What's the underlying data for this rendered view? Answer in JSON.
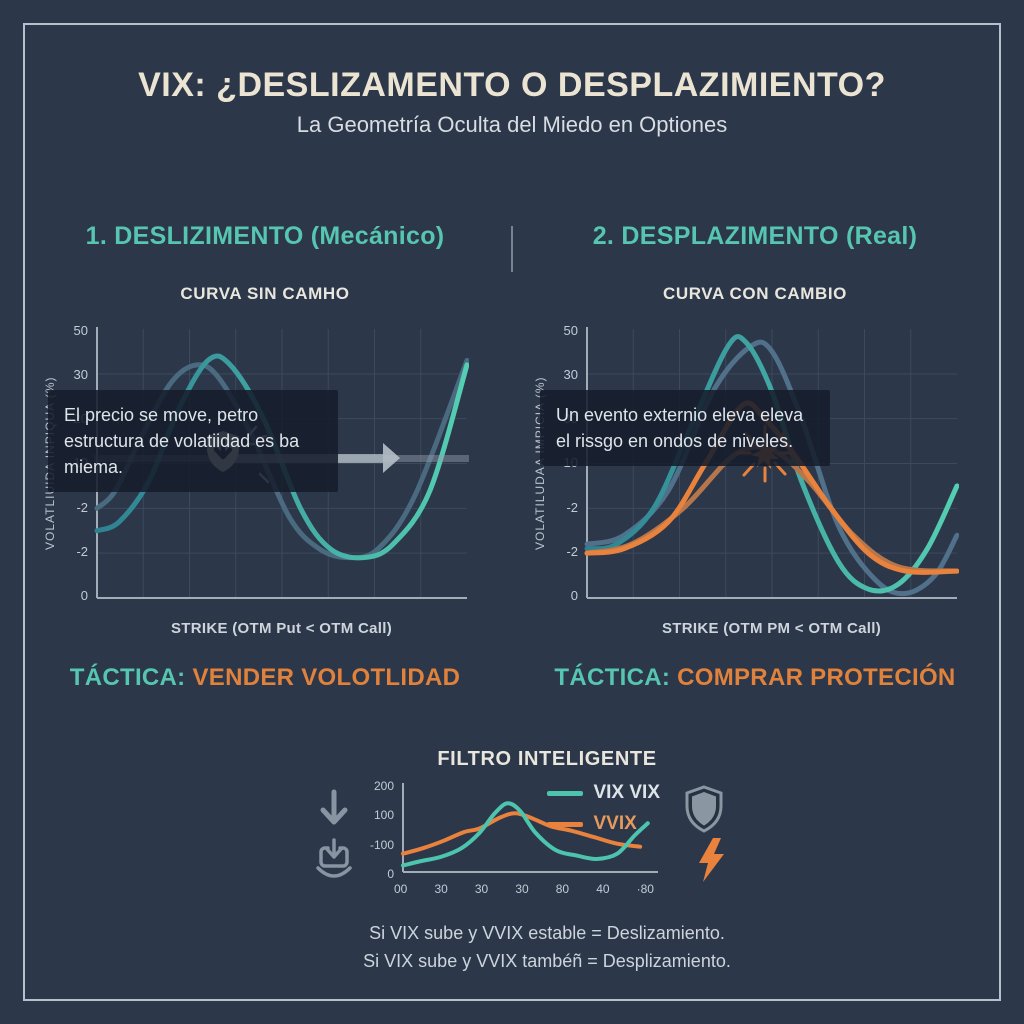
{
  "header": {
    "title": "VIX: ¿DESLIZAMENTO O DESPLAZIMIENTO?",
    "subtitle": "La Geometría Oculta del Miedo en Optiones"
  },
  "panels": {
    "left": {
      "heading": "1. DESLIZIMENTO (Mecánico)",
      "chart_title": "CURVA SIN CAMHO",
      "y_axis_label": "VOLATLIUIDA INPIQUA (%)",
      "x_axis_label": "STRIKE (OTM Put  < OTM Call)",
      "annotation": "El precio se move, petro estructura de volatiidad es ba miema.",
      "tactic_label": "TÁCTICA:",
      "tactic_value": "VENDER VOLOTLIDAD"
    },
    "right": {
      "heading": "2. DESPLAZIMENTO (Real)",
      "chart_title": "CURVA CON CAMBIO",
      "y_axis_label": "VOLATILUDAA IMPICIA (%)",
      "x_axis_label": "STRIKE (OTM PM  < OTM Call)",
      "annotation": "Un evento externio eleva eleva el rissgo en ondos de niveles.",
      "tactic_label": "TÁCTICA:",
      "tactic_value": "COMPRAR PROTECIÓN"
    }
  },
  "bottom": {
    "title": "FILTRO INTELIGENTE",
    "legend": [
      {
        "label": "VIX VIX",
        "color": "#4cc4ae"
      },
      {
        "label": "VVIX",
        "color": "#e8823d"
      }
    ],
    "rule_lines": [
      "Si VIX sube y VVIX estable = Deslizamiento.",
      "Si VIX sube y VVIX tambéñ = Desplizamiento."
    ]
  },
  "icons": {
    "left_chart_badge": "shield-down-arrow-icon",
    "right_chart_event": "starburst-icon",
    "filter_row": [
      "down-arrow-icon",
      "download-tray-icon",
      "shield-icon",
      "lightning-bolt-icon"
    ]
  },
  "colors": {
    "background": "#2c3749",
    "frame": "#b6c1c9",
    "title_cream": "#ece4d2",
    "accent_teal": "#56c6b0",
    "accent_orange": "#e0813c",
    "grid": "#3b4a5f",
    "axis": "#a2adb8"
  },
  "chart_data": [
    {
      "id": "curve-left",
      "type": "line",
      "title": "CURVA SIN CAMHO",
      "xlabel": "STRIKE (OTM Put  < OTM Call)",
      "ylabel": "VOLATLIUIDA INPIQUA (%)",
      "y_tick_labels": [
        "50",
        "30",
        "20",
        "10",
        "-2",
        "-2",
        "0"
      ],
      "ylim": [
        -8,
        52
      ],
      "grid": {
        "cols": 8,
        "rows": 6
      },
      "series": [
        {
          "name": "curva-original",
          "color": "#4a6a80",
          "width": 5,
          "x": [
            0,
            0.05,
            0.12,
            0.2,
            0.27,
            0.33,
            0.42,
            0.52,
            0.6,
            0.68,
            0.76,
            0.86,
            1.0
          ],
          "y": [
            12,
            16,
            28,
            40,
            44,
            41,
            28,
            10,
            3,
            1,
            3,
            15,
            45
          ]
        },
        {
          "name": "curva-deslizada",
          "gradient": [
            "#2e8192",
            "#55cfb3"
          ],
          "width": 5,
          "x": [
            0,
            0.06,
            0.14,
            0.22,
            0.3,
            0.36,
            0.45,
            0.55,
            0.63,
            0.72,
            0.8,
            0.9,
            1.0
          ],
          "y": [
            7,
            9,
            18,
            34,
            45,
            44,
            32,
            12,
            3,
            1,
            4,
            16,
            44
          ]
        }
      ]
    },
    {
      "id": "curve-right",
      "type": "line",
      "title": "CURVA CON CAMBIO",
      "xlabel": "STRIKE (OTM PM  < OTM Call)",
      "ylabel": "VOLATILUDAA IMPICIA (%)",
      "y_tick_labels": [
        "50",
        "30",
        "30",
        "10",
        "-2",
        "-2",
        "0"
      ],
      "ylim": [
        -8,
        52
      ],
      "grid": {
        "cols": 8,
        "rows": 6
      },
      "series": [
        {
          "name": "curva-original",
          "color": "#51708a",
          "width": 5,
          "x": [
            0,
            0.1,
            0.22,
            0.34,
            0.44,
            0.5,
            0.58,
            0.68,
            0.78,
            0.86,
            0.94,
            1.0
          ],
          "y": [
            4,
            6,
            16,
            38,
            48,
            47,
            32,
            8,
            -4,
            -7,
            -3,
            6
          ]
        },
        {
          "name": "curva-desplazada",
          "gradient": [
            "#2e8192",
            "#55cfb3"
          ],
          "width": 5,
          "x": [
            0,
            0.08,
            0.18,
            0.28,
            0.38,
            0.43,
            0.5,
            0.58,
            0.68,
            0.76,
            0.84,
            0.92,
            1.0
          ],
          "y": [
            3,
            4,
            12,
            30,
            48,
            49,
            38,
            18,
            0,
            -6,
            -5,
            3,
            17
          ]
        },
        {
          "name": "nivel-elevado-suave",
          "color": "#b5764c",
          "width": 5,
          "x": [
            0,
            0.12,
            0.26,
            0.4,
            0.5,
            0.6,
            0.72,
            0.84,
            1.0
          ],
          "y": [
            2,
            4,
            12,
            24,
            25,
            18,
            6,
            -1,
            -2
          ]
        },
        {
          "name": "nivel-elevado",
          "color": "#e8823d",
          "width": 5,
          "x": [
            0,
            0.1,
            0.22,
            0.32,
            0.42,
            0.48,
            0.56,
            0.66,
            0.76,
            0.86,
            1.0
          ],
          "y": [
            2,
            3,
            9,
            22,
            35,
            32,
            24,
            12,
            2,
            -2,
            -2
          ]
        }
      ]
    },
    {
      "id": "filtro",
      "type": "line",
      "title": "FILTRO INTELIGENTE",
      "y_tick_labels": [
        "200",
        "100",
        "-100",
        "0"
      ],
      "x_tick_labels": [
        "00",
        "30",
        "30",
        "30",
        "80",
        "40",
        "·80"
      ],
      "ylim": [
        0,
        200
      ],
      "series": [
        {
          "name": "VVIX",
          "color": "#e8823d",
          "width": 4,
          "x": [
            0,
            0.08,
            0.16,
            0.24,
            0.3,
            0.38,
            0.44,
            0.5,
            0.58,
            0.66,
            0.75,
            0.84,
            0.93
          ],
          "y": [
            42,
            55,
            72,
            92,
            100,
            125,
            135,
            125,
            105,
            95,
            80,
            65,
            58
          ]
        },
        {
          "name": "VIX VIX",
          "color": "#4cc4ae",
          "width": 4,
          "x": [
            0,
            0.07,
            0.15,
            0.23,
            0.3,
            0.36,
            0.41,
            0.46,
            0.52,
            0.6,
            0.68,
            0.76,
            0.84,
            0.91,
            0.96
          ],
          "y": [
            15,
            25,
            35,
            55,
            90,
            135,
            158,
            140,
            90,
            50,
            38,
            30,
            42,
            85,
            112
          ]
        }
      ]
    }
  ]
}
